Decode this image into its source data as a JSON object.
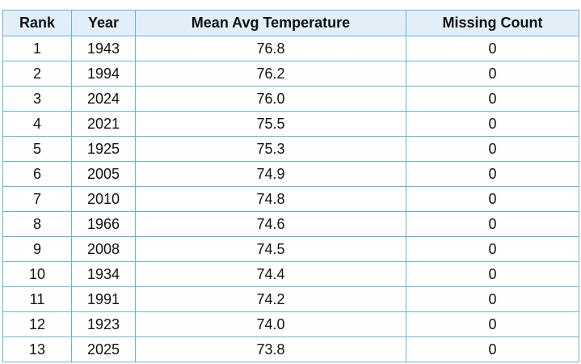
{
  "table": {
    "header": [
      "Rank",
      "Year",
      "Mean Avg Temperature",
      "Missing Count"
    ],
    "rows": [
      [
        "1",
        "1943",
        "76.8",
        "0"
      ],
      [
        "2",
        "1994",
        "76.2",
        "0"
      ],
      [
        "3",
        "2024",
        "76.0",
        "0"
      ],
      [
        "4",
        "2021",
        "75.5",
        "0"
      ],
      [
        "5",
        "1925",
        "75.3",
        "0"
      ],
      [
        "6",
        "2005",
        "74.9",
        "0"
      ],
      [
        "7",
        "2010",
        "74.8",
        "0"
      ],
      [
        "8",
        "1966",
        "74.6",
        "0"
      ],
      [
        "9",
        "2008",
        "74.5",
        "0"
      ],
      [
        "10",
        "1934",
        "74.4",
        "0"
      ],
      [
        "11",
        "1991",
        "74.2",
        "0"
      ],
      [
        "12",
        "1923",
        "74.0",
        "0"
      ],
      [
        "13",
        "2025",
        "73.8",
        "0"
      ]
    ]
  }
}
